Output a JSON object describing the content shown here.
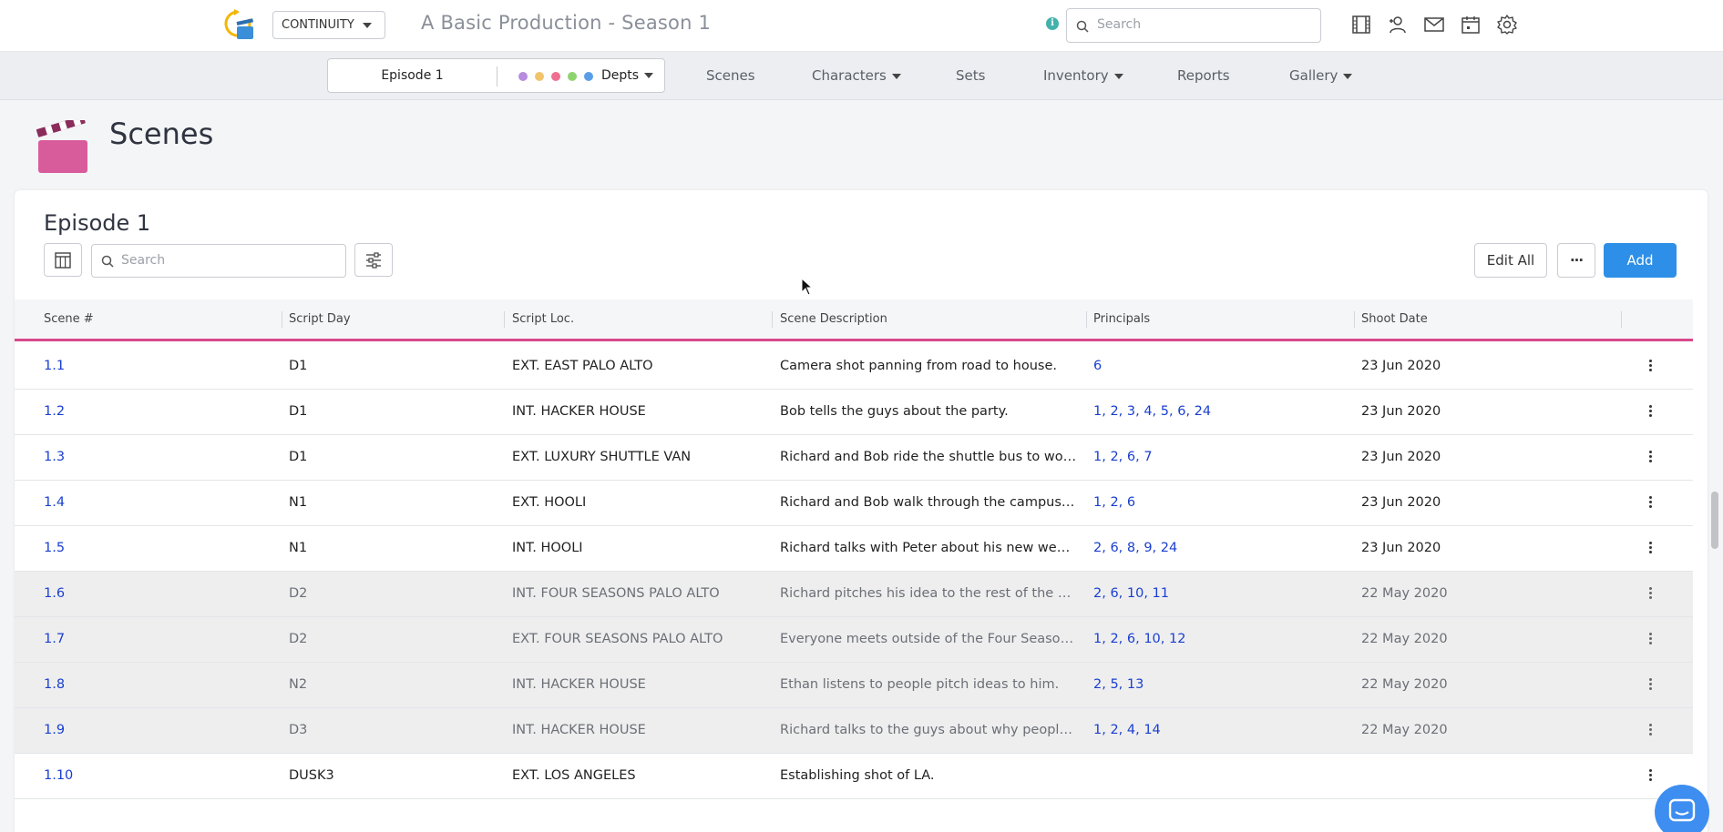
{
  "app": {
    "module_select": "CONTINUITY",
    "production_title": "A Basic Production - Season 1",
    "search_placeholder": "Search",
    "info_label": "i",
    "top_icons": [
      "film-icon",
      "add-user-icon",
      "mail-icon",
      "calendar-icon",
      "settings-icon"
    ]
  },
  "nav": {
    "episode": "Episode 1",
    "dept_dots": [
      "#b78be0",
      "#f2c36b",
      "#ee6f8f",
      "#8fd36e",
      "#5b9ee8"
    ],
    "depts_label": "Depts",
    "items": [
      {
        "label": "Scenes",
        "dropdown": false
      },
      {
        "label": "Characters",
        "dropdown": true
      },
      {
        "label": "Sets",
        "dropdown": false
      },
      {
        "label": "Inventory",
        "dropdown": true
      },
      {
        "label": "Reports",
        "dropdown": false
      },
      {
        "label": "Gallery",
        "dropdown": true
      }
    ]
  },
  "page": {
    "title": "Scenes"
  },
  "card": {
    "title": "Episode 1",
    "search_placeholder": "Search",
    "edit_all_label": "Edit All",
    "more_label": "···",
    "add_label": "Add"
  },
  "table": {
    "columns": [
      "Scene #",
      "Script Day",
      "Script Loc.",
      "Scene Description",
      "Principals",
      "Shoot Date"
    ],
    "rows": [
      {
        "scene": "1.1",
        "day": "D1",
        "loc": "EXT. EAST PALO ALTO",
        "desc": "Camera shot panning from road to house.",
        "principals": "6",
        "date": "23 Jun 2020",
        "past": false
      },
      {
        "scene": "1.2",
        "day": "D1",
        "loc": "INT. HACKER HOUSE",
        "desc": "Bob tells the guys about the party.",
        "principals": "1, 2, 3, 4, 5, 6, 24",
        "date": "23 Jun 2020",
        "past": false
      },
      {
        "scene": "1.3",
        "day": "D1",
        "loc": "EXT. LUXURY SHUTTLE VAN",
        "desc": "Richard and Bob ride the shuttle bus to work and discuss the party.",
        "principals": "1, 2, 6, 7",
        "date": "23 Jun 2020",
        "past": false
      },
      {
        "scene": "1.4",
        "day": "N1",
        "loc": "EXT. HOOLI",
        "desc": "Richard and Bob walk through the campus talking about the idea.",
        "principals": "1, 2, 6",
        "date": "23 Jun 2020",
        "past": false
      },
      {
        "scene": "1.5",
        "day": "N1",
        "loc": "INT. HOOLI",
        "desc": "Richard talks with Peter about his new website idea.",
        "principals": "2, 6, 8, 9, 24",
        "date": "23 Jun 2020",
        "past": false
      },
      {
        "scene": "1.6",
        "day": "D2",
        "loc": "INT. FOUR SEASONS PALO ALTO",
        "desc": "Richard pitches his idea to the rest of the class.",
        "principals": "2, 6, 10, 11",
        "date": "22 May 2020",
        "past": true
      },
      {
        "scene": "1.7",
        "day": "D2",
        "loc": "EXT. FOUR SEASONS PALO ALTO",
        "desc": "Everyone meets outside of the Four Seasons.",
        "principals": "1, 2, 6, 10, 12",
        "date": "22 May 2020",
        "past": true
      },
      {
        "scene": "1.8",
        "day": "N2",
        "loc": "INT. HACKER HOUSE",
        "desc": "Ethan listens to people pitch ideas to him.",
        "principals": "2, 5, 13",
        "date": "22 May 2020",
        "past": true
      },
      {
        "scene": "1.9",
        "day": "D3",
        "loc": "INT. HACKER HOUSE",
        "desc": "Richard talks to the guys about why people don't like his idea.",
        "principals": "1, 2, 4, 14",
        "date": "22 May 2020",
        "past": true
      },
      {
        "scene": "1.10",
        "day": "DUSK3",
        "loc": "EXT. LOS ANGELES",
        "desc": "Establishing shot of LA.",
        "principals": "",
        "date": "",
        "past": false
      }
    ]
  }
}
